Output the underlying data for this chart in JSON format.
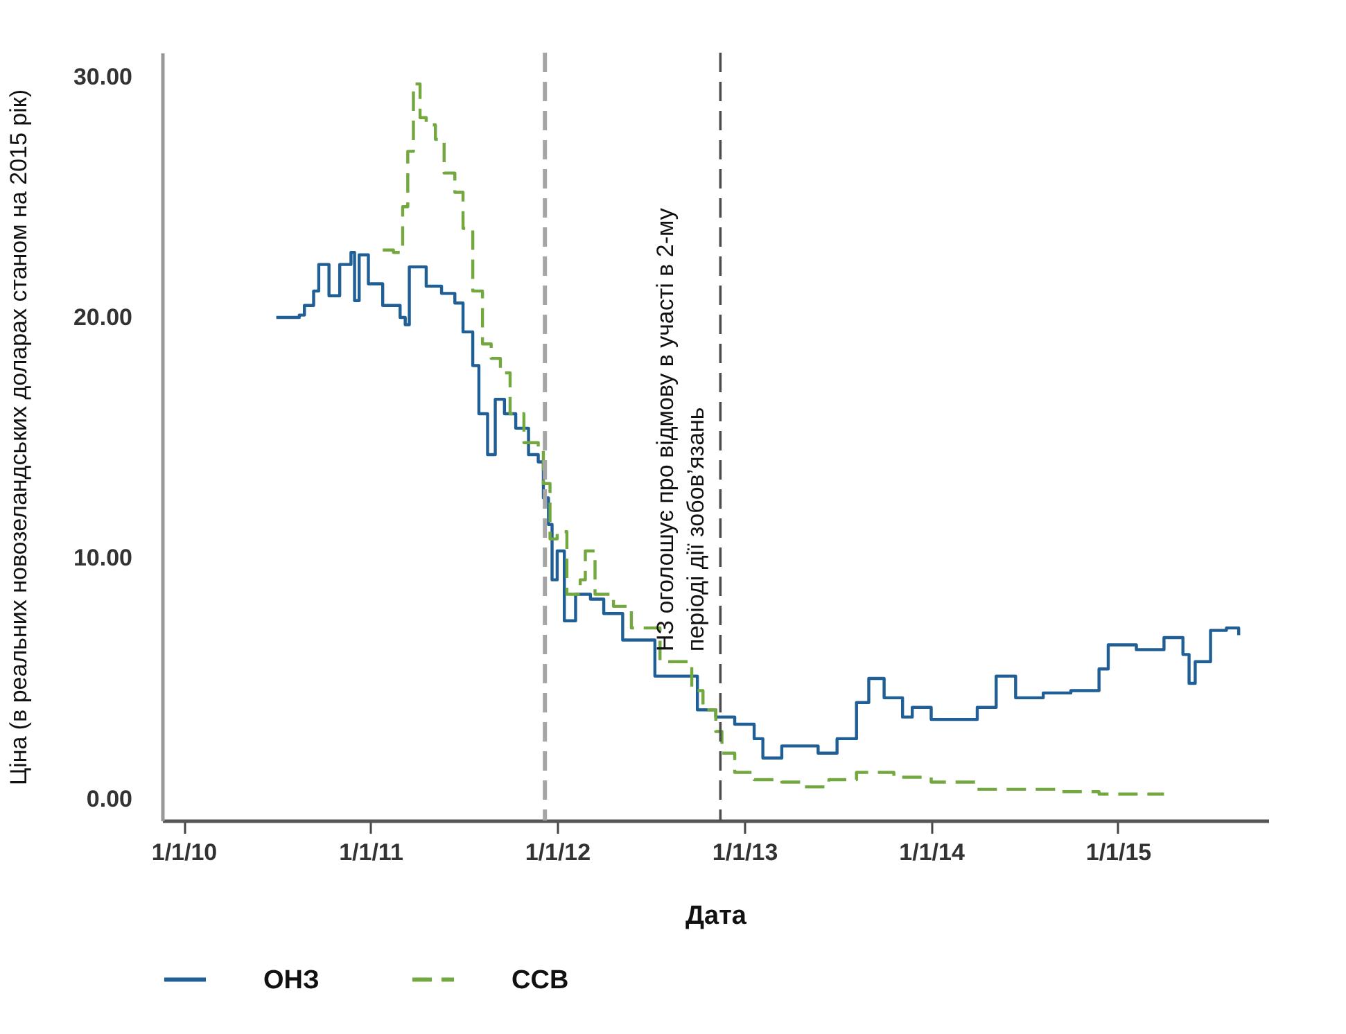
{
  "chart_data": {
    "type": "step",
    "xlabel": "Дата",
    "ylabel": "Ціна (в реальних новозеландських доларах станом на 2015 рік)",
    "xlim": [
      "2009-11-20",
      "2015-10-22"
    ],
    "xticks": [
      {
        "value": "2010-01-01",
        "label": "1/1/10"
      },
      {
        "value": "2011-01-01",
        "label": "1/1/11"
      },
      {
        "value": "2012-01-01",
        "label": "1/1/12"
      },
      {
        "value": "2013-01-01",
        "label": "1/1/13"
      },
      {
        "value": "2014-01-01",
        "label": "1/1/14"
      },
      {
        "value": "2015-01-01",
        "label": "1/1/15"
      }
    ],
    "ylim": [
      -0.9,
      31
    ],
    "yticks": [
      {
        "value": 0,
        "label": "0.00"
      },
      {
        "value": 10,
        "label": "10.00"
      },
      {
        "value": 20,
        "label": "20.00"
      },
      {
        "value": 30,
        "label": "30.00"
      }
    ],
    "grid": false,
    "legend": "bottom",
    "ref_lines": [
      {
        "axis": "x",
        "value": "2011-12-08",
        "color": "#a6a6a6",
        "line_style": "dashed"
      },
      {
        "axis": "x",
        "value": "2012-11-15",
        "color": "#4d4d4d",
        "line_style": "dashed",
        "label": "НЗ оголошує про відмову в участі в 2-му\nперіоді дії зобов’язань"
      }
    ],
    "series": [
      {
        "name": "ОНЗ",
        "color": "#1f5f96",
        "line_style": "solid",
        "x": [
          "2010-07-01",
          "2010-08-15",
          "2010-08-25",
          "2010-09-12",
          "2010-09-22",
          "2010-10-12",
          "2010-11-02",
          "2010-11-24",
          "2010-12-01",
          "2010-12-10",
          "2010-12-28",
          "2011-01-25",
          "2011-02-28",
          "2011-03-10",
          "2011-03-18",
          "2011-04-20",
          "2011-05-20",
          "2011-06-15",
          "2011-07-01",
          "2011-07-20",
          "2011-08-01",
          "2011-08-18",
          "2011-09-02",
          "2011-09-20",
          "2011-10-12",
          "2011-11-06",
          "2011-11-25",
          "2011-12-05",
          "2011-12-15",
          "2011-12-22",
          "2012-01-01",
          "2012-01-15",
          "2012-02-06",
          "2012-03-06",
          "2012-04-01",
          "2012-05-08",
          "2012-07-10",
          "2012-10-01",
          "2012-11-06",
          "2012-12-13",
          "2013-01-20",
          "2013-02-06",
          "2013-03-15",
          "2013-05-25",
          "2013-07-01",
          "2013-08-08",
          "2013-09-01",
          "2013-10-01",
          "2013-11-06",
          "2013-11-25",
          "2014-01-01",
          "2014-02-25",
          "2014-04-01",
          "2014-05-08",
          "2014-06-15",
          "2014-08-08",
          "2014-10-01",
          "2014-11-25",
          "2014-12-13",
          "2015-02-06",
          "2015-04-01",
          "2015-05-08",
          "2015-05-20",
          "2015-06-01",
          "2015-07-01",
          "2015-08-01",
          "2015-08-25"
        ],
        "values": [
          20.0,
          20.1,
          20.5,
          21.1,
          22.2,
          20.9,
          22.2,
          22.7,
          20.7,
          22.6,
          21.4,
          20.5,
          20.0,
          19.7,
          22.1,
          21.3,
          21.0,
          20.6,
          19.4,
          18.0,
          16.0,
          14.3,
          16.6,
          16.0,
          15.4,
          14.3,
          14.0,
          12.5,
          11.4,
          9.1,
          10.3,
          7.4,
          8.5,
          8.3,
          7.7,
          6.6,
          5.1,
          3.7,
          3.4,
          3.1,
          2.5,
          1.7,
          2.2,
          1.9,
          2.5,
          4.0,
          5.0,
          4.2,
          3.4,
          3.8,
          3.3,
          3.3,
          3.8,
          5.1,
          4.2,
          4.4,
          4.5,
          5.4,
          6.4,
          6.2,
          6.7,
          6.0,
          4.8,
          5.7,
          7.0,
          7.1,
          6.8
        ]
      },
      {
        "name": "ССВ",
        "color": "#72a83f",
        "line_style": "dashed",
        "x": [
          "2011-01-25",
          "2011-02-15",
          "2011-03-05",
          "2011-03-15",
          "2011-03-26",
          "2011-04-08",
          "2011-04-20",
          "2011-05-08",
          "2011-05-25",
          "2011-06-15",
          "2011-07-01",
          "2011-07-20",
          "2011-08-08",
          "2011-08-25",
          "2011-09-12",
          "2011-10-01",
          "2011-10-28",
          "2011-11-25",
          "2011-12-05",
          "2011-12-18",
          "2012-01-01",
          "2012-01-20",
          "2012-02-15",
          "2012-02-25",
          "2012-03-15",
          "2012-04-20",
          "2012-05-25",
          "2012-07-20",
          "2012-08-25",
          "2012-09-20",
          "2012-10-12",
          "2012-11-06",
          "2012-11-18",
          "2012-12-13",
          "2013-01-20",
          "2013-03-15",
          "2013-04-20",
          "2013-06-15",
          "2013-08-08",
          "2013-09-12",
          "2013-10-20",
          "2014-01-01",
          "2014-04-01",
          "2014-07-01",
          "2014-09-12",
          "2014-11-25",
          "2015-02-06",
          "2015-04-01"
        ],
        "values": [
          22.8,
          22.7,
          24.6,
          26.9,
          29.7,
          28.3,
          28.0,
          27.4,
          26.0,
          25.2,
          23.7,
          21.1,
          18.9,
          18.3,
          17.7,
          16.0,
          14.8,
          14.6,
          13.1,
          10.8,
          11.1,
          8.5,
          9.1,
          10.3,
          8.5,
          8.0,
          7.1,
          5.7,
          5.7,
          4.5,
          3.7,
          2.8,
          1.9,
          1.1,
          0.8,
          0.7,
          0.5,
          0.8,
          1.1,
          1.1,
          0.9,
          0.7,
          0.4,
          0.4,
          0.3,
          0.2,
          0.2,
          0.2
        ]
      }
    ]
  }
}
